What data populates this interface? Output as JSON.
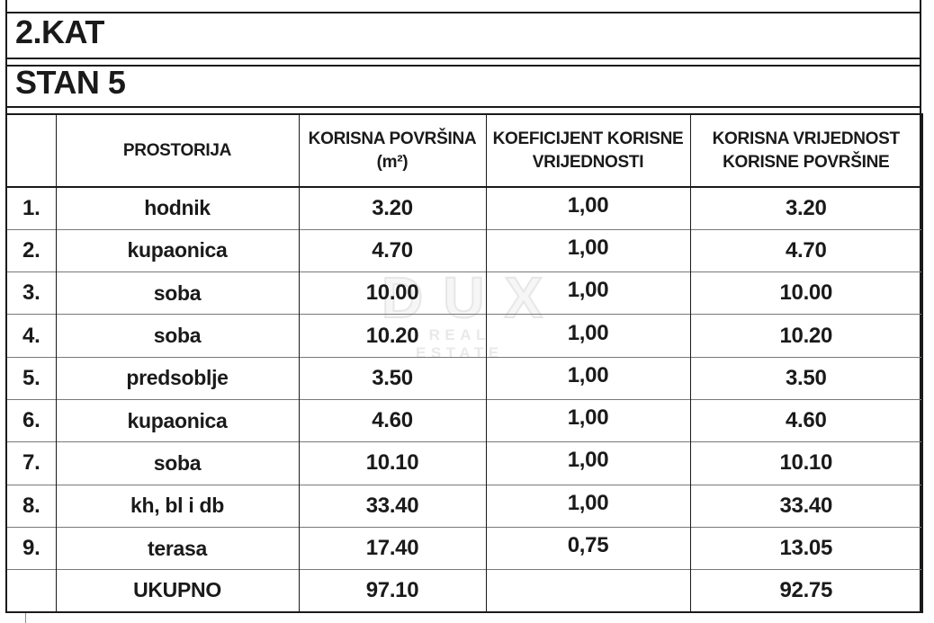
{
  "page": {
    "floor_title": "2.KAT",
    "unit_title": "STAN 5"
  },
  "watermark": {
    "brand": "DUX",
    "tagline": "REAL ESTATE"
  },
  "colors": {
    "text": "#1a1a1a",
    "border": "#1a1a1a",
    "row_separator": "#787878",
    "watermark": "#e9e9e9"
  },
  "table": {
    "headers": {
      "index": "",
      "room": "PROSTORIJA",
      "area": [
        "KORISNA POVRŠINA",
        "(m²)"
      ],
      "coefficient": [
        "KOEFICIJENT KORISNE",
        "VRIJEDNOSTI"
      ],
      "value": [
        "KORISNA VRIJEDNOST",
        "KORISNE POVRŠINE"
      ]
    },
    "rows": [
      {
        "index": "1.",
        "room": "hodnik",
        "area": "3.20",
        "coefficient": "1,00",
        "value": "3.20"
      },
      {
        "index": "2.",
        "room": "kupaonica",
        "area": "4.70",
        "coefficient": "1,00",
        "value": "4.70"
      },
      {
        "index": "3.",
        "room": "soba",
        "area": "10.00",
        "coefficient": "1,00",
        "value": "10.00"
      },
      {
        "index": "4.",
        "room": "soba",
        "area": "10.20",
        "coefficient": "1,00",
        "value": "10.20"
      },
      {
        "index": "5.",
        "room": "predsoblje",
        "area": "3.50",
        "coefficient": "1,00",
        "value": "3.50"
      },
      {
        "index": "6.",
        "room": "kupaonica",
        "area": "4.60",
        "coefficient": "1,00",
        "value": "4.60"
      },
      {
        "index": "7.",
        "room": "soba",
        "area": "10.10",
        "coefficient": "1,00",
        "value": "10.10"
      },
      {
        "index": "8.",
        "room": "kh, bl i db",
        "area": "33.40",
        "coefficient": "1,00",
        "value": "33.40"
      },
      {
        "index": "9.",
        "room": "terasa",
        "area": "17.40",
        "coefficient": "0,75",
        "value": "13.05"
      }
    ],
    "total": {
      "index": "",
      "label": "UKUPNO",
      "area": "97.10",
      "coefficient": "",
      "value": "92.75"
    }
  }
}
